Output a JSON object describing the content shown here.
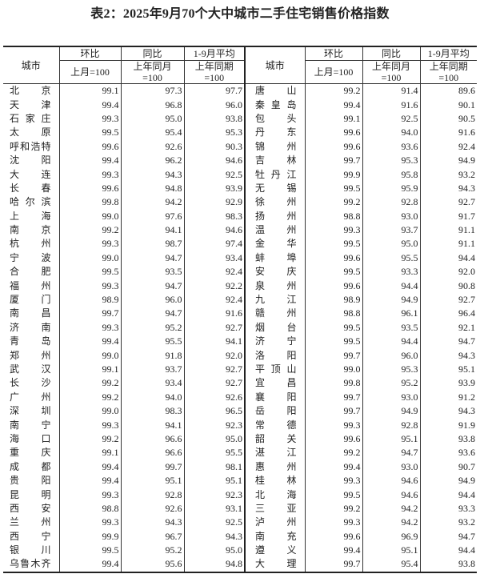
{
  "title": "表2：2025年9月70个大中城市二手住宅销售价格指数",
  "header": {
    "city": "城市",
    "mom": "环比",
    "mom_base": "上月=100",
    "yoy": "同比",
    "yoy_base_1": "上年同月",
    "yoy_base_2": "=100",
    "avg": "1-9月平均",
    "avg_base_1": "上年同期",
    "avg_base_2": "=100"
  },
  "left": [
    [
      "北京",
      "99.1",
      "97.3",
      "97.7"
    ],
    [
      "天津",
      "99.4",
      "96.8",
      "96.0"
    ],
    [
      "石家庄",
      "99.3",
      "95.0",
      "93.8"
    ],
    [
      "太原",
      "99.5",
      "95.4",
      "95.3"
    ],
    [
      "呼和浩特",
      "99.6",
      "92.6",
      "90.3"
    ],
    [
      "沈阳",
      "99.4",
      "96.2",
      "94.6"
    ],
    [
      "大连",
      "99.3",
      "94.3",
      "92.5"
    ],
    [
      "长春",
      "99.6",
      "94.8",
      "93.9"
    ],
    [
      "哈尔滨",
      "99.8",
      "94.2",
      "92.9"
    ],
    [
      "上海",
      "99.0",
      "97.6",
      "98.3"
    ],
    [
      "南京",
      "99.2",
      "94.1",
      "94.6"
    ],
    [
      "杭州",
      "99.3",
      "98.7",
      "97.4"
    ],
    [
      "宁波",
      "99.0",
      "94.7",
      "93.4"
    ],
    [
      "合肥",
      "99.5",
      "93.5",
      "92.4"
    ],
    [
      "福州",
      "99.3",
      "94.7",
      "92.2"
    ],
    [
      "厦门",
      "98.9",
      "96.0",
      "92.4"
    ],
    [
      "南昌",
      "99.7",
      "94.7",
      "91.6"
    ],
    [
      "济南",
      "99.3",
      "95.2",
      "92.7"
    ],
    [
      "青岛",
      "99.4",
      "95.5",
      "94.1"
    ],
    [
      "郑州",
      "99.0",
      "91.8",
      "92.0"
    ],
    [
      "武汉",
      "99.1",
      "93.7",
      "92.7"
    ],
    [
      "长沙",
      "99.2",
      "93.4",
      "92.7"
    ],
    [
      "广州",
      "99.2",
      "94.0",
      "92.6"
    ],
    [
      "深圳",
      "99.0",
      "98.3",
      "96.5"
    ],
    [
      "南宁",
      "99.3",
      "94.1",
      "92.3"
    ],
    [
      "海口",
      "99.2",
      "96.6",
      "95.0"
    ],
    [
      "重庆",
      "99.1",
      "96.6",
      "95.5"
    ],
    [
      "成都",
      "99.4",
      "99.7",
      "98.1"
    ],
    [
      "贵阳",
      "99.4",
      "95.1",
      "95.1"
    ],
    [
      "昆明",
      "99.3",
      "92.8",
      "92.3"
    ],
    [
      "西安",
      "98.8",
      "92.6",
      "93.1"
    ],
    [
      "兰州",
      "99.3",
      "94.3",
      "92.5"
    ],
    [
      "西宁",
      "99.9",
      "96.7",
      "94.3"
    ],
    [
      "银川",
      "99.5",
      "95.2",
      "95.0"
    ],
    [
      "乌鲁木齐",
      "99.4",
      "95.6",
      "94.8"
    ]
  ],
  "right": [
    [
      "唐山",
      "99.2",
      "91.4",
      "89.6"
    ],
    [
      "秦皇岛",
      "99.4",
      "91.6",
      "90.1"
    ],
    [
      "包头",
      "99.1",
      "92.5",
      "90.5"
    ],
    [
      "丹东",
      "99.6",
      "94.0",
      "91.6"
    ],
    [
      "锦州",
      "99.6",
      "93.6",
      "92.4"
    ],
    [
      "吉林",
      "99.7",
      "95.3",
      "94.9"
    ],
    [
      "牡丹江",
      "99.9",
      "95.8",
      "93.2"
    ],
    [
      "无锡",
      "99.5",
      "95.9",
      "94.3"
    ],
    [
      "徐州",
      "99.2",
      "92.8",
      "92.7"
    ],
    [
      "扬州",
      "98.8",
      "93.0",
      "91.7"
    ],
    [
      "温州",
      "99.3",
      "93.7",
      "91.1"
    ],
    [
      "金华",
      "99.5",
      "95.0",
      "91.1"
    ],
    [
      "蚌埠",
      "99.6",
      "95.5",
      "94.4"
    ],
    [
      "安庆",
      "99.5",
      "93.3",
      "92.0"
    ],
    [
      "泉州",
      "99.6",
      "94.4",
      "90.8"
    ],
    [
      "九江",
      "98.9",
      "94.9",
      "92.7"
    ],
    [
      "赣州",
      "98.8",
      "96.1",
      "96.4"
    ],
    [
      "烟台",
      "99.5",
      "93.5",
      "92.1"
    ],
    [
      "济宁",
      "99.5",
      "94.4",
      "94.7"
    ],
    [
      "洛阳",
      "99.7",
      "96.0",
      "94.3"
    ],
    [
      "平顶山",
      "99.0",
      "95.3",
      "95.1"
    ],
    [
      "宜昌",
      "99.8",
      "95.2",
      "93.9"
    ],
    [
      "襄阳",
      "99.7",
      "93.0",
      "91.2"
    ],
    [
      "岳阳",
      "99.7",
      "94.9",
      "94.3"
    ],
    [
      "常德",
      "99.3",
      "92.8",
      "91.9"
    ],
    [
      "韶关",
      "99.6",
      "95.1",
      "93.8"
    ],
    [
      "湛江",
      "99.2",
      "94.7",
      "93.6"
    ],
    [
      "惠州",
      "99.4",
      "93.0",
      "90.7"
    ],
    [
      "桂林",
      "99.3",
      "94.6",
      "94.9"
    ],
    [
      "北海",
      "99.5",
      "94.6",
      "94.4"
    ],
    [
      "三亚",
      "99.2",
      "94.2",
      "93.3"
    ],
    [
      "泸州",
      "99.3",
      "94.2",
      "93.2"
    ],
    [
      "南充",
      "99.6",
      "96.9",
      "94.7"
    ],
    [
      "遵义",
      "99.4",
      "95.1",
      "94.4"
    ],
    [
      "大理",
      "99.7",
      "95.4",
      "93.8"
    ]
  ]
}
